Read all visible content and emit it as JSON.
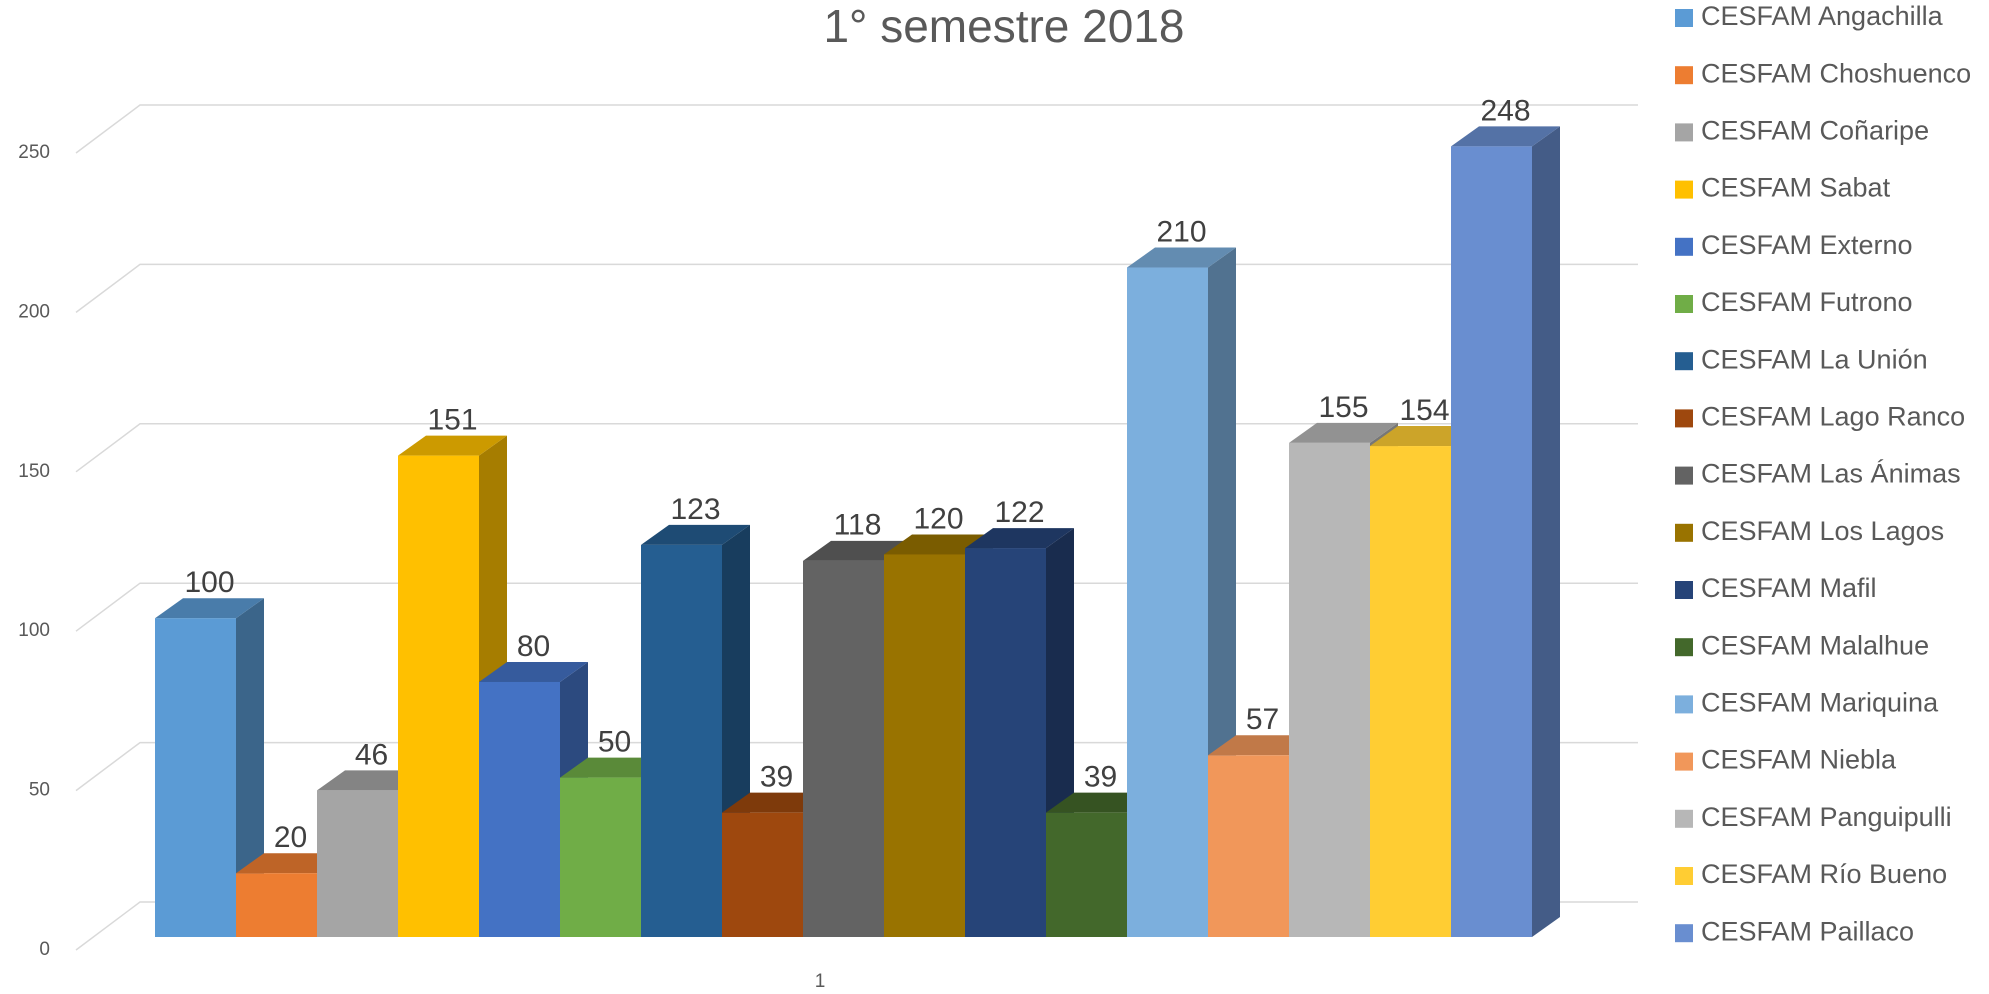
{
  "chart_data": {
    "type": "bar3d",
    "title": "1° semestre 2018",
    "categories": [
      "1"
    ],
    "ylim": [
      0,
      250
    ],
    "yticks": [
      0,
      50,
      100,
      150,
      200,
      250
    ],
    "grid": true,
    "legend": "right",
    "series": [
      {
        "name": "CESFAM Angachilla",
        "color": "#5b9bd5",
        "values": [
          100
        ]
      },
      {
        "name": "CESFAM Choshuenco",
        "color": "#ed7d31",
        "values": [
          20
        ]
      },
      {
        "name": "CESFAM Coñaripe",
        "color": "#a5a5a5",
        "values": [
          46
        ]
      },
      {
        "name": "CESFAM Sabat",
        "color": "#ffc000",
        "values": [
          151
        ]
      },
      {
        "name": "CESFAM Externo",
        "color": "#4472c4",
        "values": [
          80
        ]
      },
      {
        "name": "CESFAM Futrono",
        "color": "#70ad47",
        "values": [
          50
        ]
      },
      {
        "name": "CESFAM La Unión",
        "color": "#255e91",
        "values": [
          123
        ]
      },
      {
        "name": "CESFAM Lago Ranco",
        "color": "#9e480e",
        "values": [
          39
        ]
      },
      {
        "name": "CESFAM Las Ánimas",
        "color": "#636363",
        "values": [
          118
        ]
      },
      {
        "name": "CESFAM Los Lagos",
        "color": "#997300",
        "values": [
          120
        ]
      },
      {
        "name": "CESFAM Mafil",
        "color": "#264478",
        "values": [
          122
        ]
      },
      {
        "name": "CESFAM Malalhue",
        "color": "#43682b",
        "values": [
          39
        ]
      },
      {
        "name": "CESFAM Mariquina",
        "color": "#7cafdd",
        "values": [
          210
        ]
      },
      {
        "name": "CESFAM Niebla",
        "color": "#f1975a",
        "values": [
          57
        ]
      },
      {
        "name": "CESFAM Panguipulli",
        "color": "#b7b7b7",
        "values": [
          155
        ]
      },
      {
        "name": "CESFAM Río Bueno",
        "color": "#ffcd33",
        "values": [
          154
        ]
      },
      {
        "name": "CESFAM Paillaco",
        "color": "#698ed0",
        "values": [
          248
        ]
      }
    ]
  }
}
